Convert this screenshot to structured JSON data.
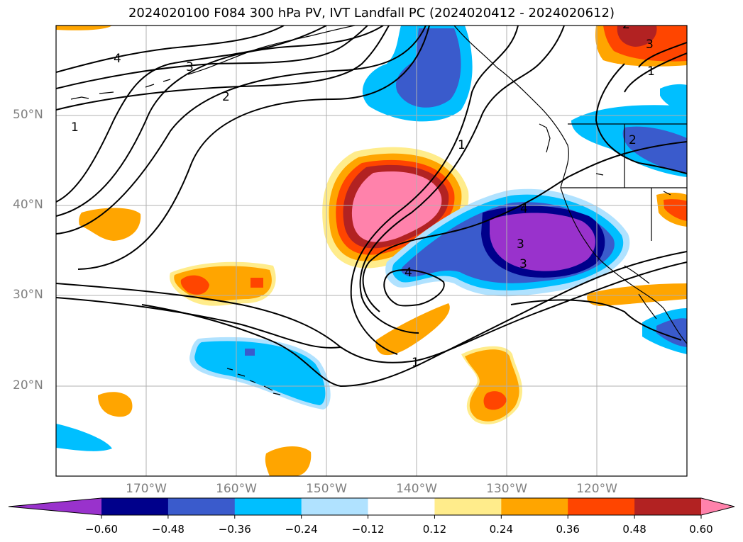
{
  "title": "2024020100 F084 300 hPa PV, IVT Landfall PC (2024020412 - 2024020612)",
  "lat_labels": [
    "50°N",
    "40°N",
    "30°N",
    "20°N"
  ],
  "lon_labels": [
    "170°W",
    "160°W",
    "150°W",
    "140°W",
    "130°W",
    "120°W"
  ],
  "colorbar": {
    "ticks": [
      "−0.60",
      "−0.48",
      "−0.36",
      "−0.24",
      "−0.12",
      "0.12",
      "0.24",
      "0.36",
      "0.48",
      "0.60"
    ],
    "colors": [
      "#9932cc",
      "#00008b",
      "#3a5bcc",
      "#00bfff",
      "#b0e2ff",
      "#ffffff",
      "#ffec8b",
      "#ffa500",
      "#ff4500",
      "#b22222",
      "#ff82ab"
    ]
  },
  "contour_labels": [
    "4",
    "3",
    "2",
    "1",
    "4",
    "3",
    "4",
    "3",
    "2",
    "1",
    "3",
    "1",
    "2",
    "1"
  ]
}
